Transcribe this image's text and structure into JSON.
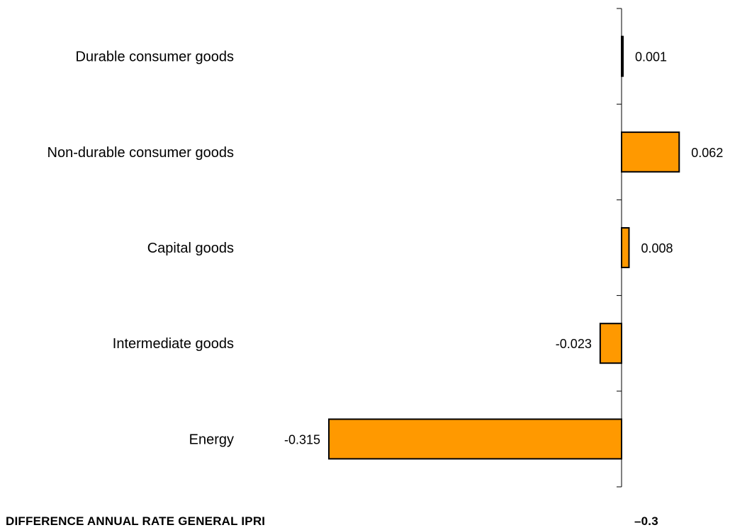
{
  "chart_data": {
    "type": "bar",
    "orientation": "horizontal",
    "categories": [
      "Durable consumer goods",
      "Non-durable consumer goods",
      "Capital goods",
      "Intermediate goods",
      "Energy"
    ],
    "values": [
      0.001,
      0.062,
      0.008,
      -0.023,
      -0.315
    ],
    "value_labels": [
      "0.001",
      "0.062",
      "0.008",
      "-0.023",
      "-0.315"
    ],
    "xlim": [
      -0.34,
      0.12
    ],
    "bar_color": "#FF9900",
    "bar_edge_color": "#000000",
    "grid": false,
    "legend": "none"
  },
  "footer": {
    "label": "DIFFERENCE ANNUAL  RATE GENERAL IPRI",
    "value": "–0.3"
  }
}
